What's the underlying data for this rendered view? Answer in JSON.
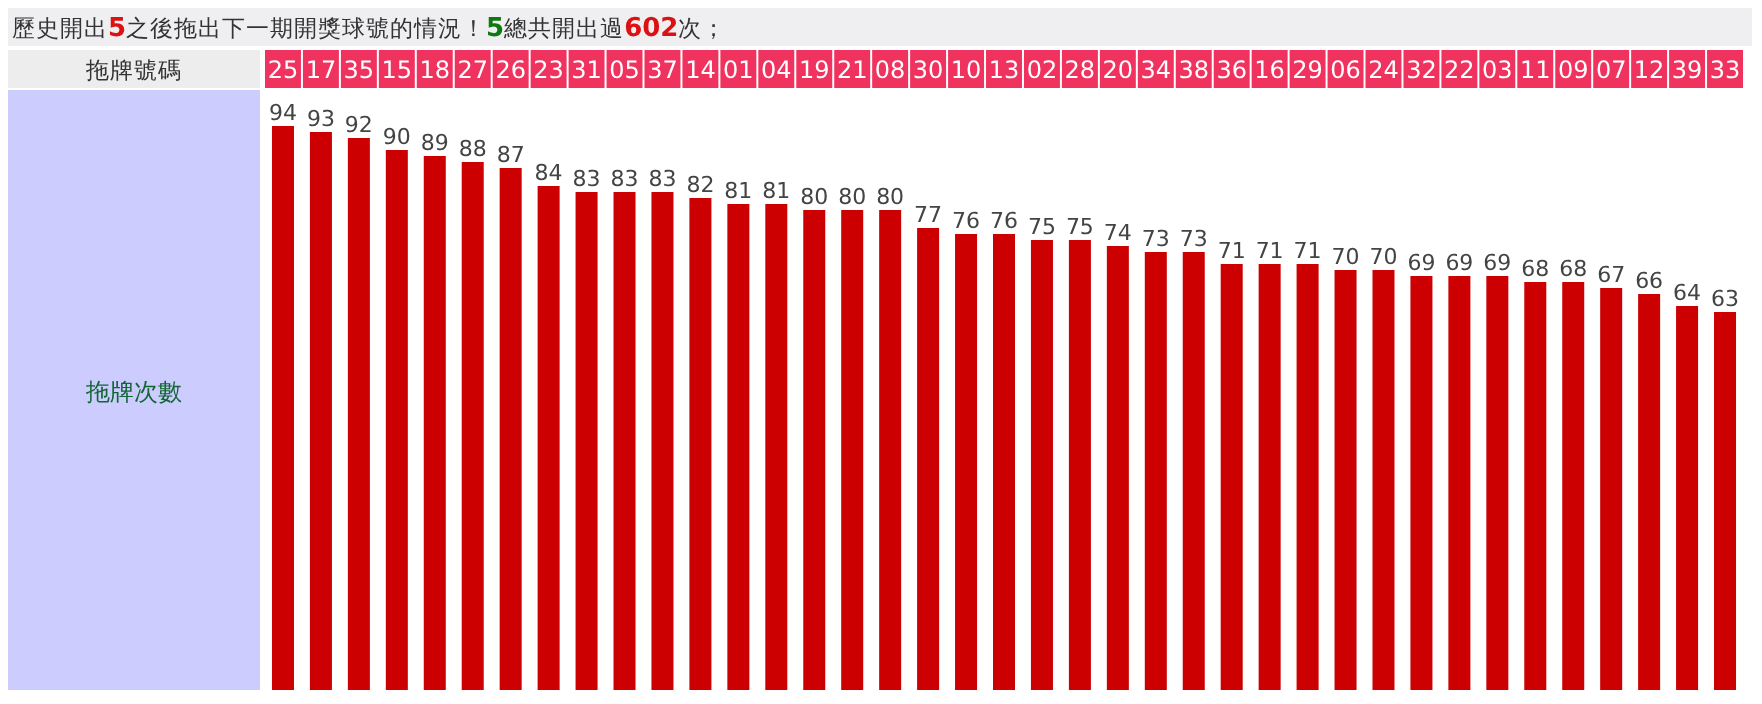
{
  "chart_data": {
    "type": "bar",
    "title": "歷史開出5之後拖出下一期開獎球號的情況！5總共開出過602次；",
    "xlabel": "拖牌號碼",
    "ylabel": "拖牌次數",
    "categories": [
      "25",
      "17",
      "35",
      "15",
      "18",
      "27",
      "26",
      "23",
      "31",
      "05",
      "37",
      "14",
      "01",
      "04",
      "19",
      "21",
      "08",
      "30",
      "10",
      "13",
      "02",
      "28",
      "20",
      "34",
      "38",
      "36",
      "16",
      "29",
      "06",
      "24",
      "32",
      "22",
      "03",
      "11",
      "09",
      "07",
      "12",
      "39",
      "33"
    ],
    "values": [
      94,
      93,
      92,
      90,
      89,
      88,
      87,
      84,
      83,
      83,
      83,
      82,
      81,
      81,
      80,
      80,
      80,
      77,
      76,
      76,
      75,
      75,
      74,
      73,
      73,
      71,
      71,
      71,
      70,
      70,
      69,
      69,
      69,
      68,
      68,
      67,
      66,
      64,
      63
    ],
    "color": "#cc0000",
    "data_labels": true
  }
}
